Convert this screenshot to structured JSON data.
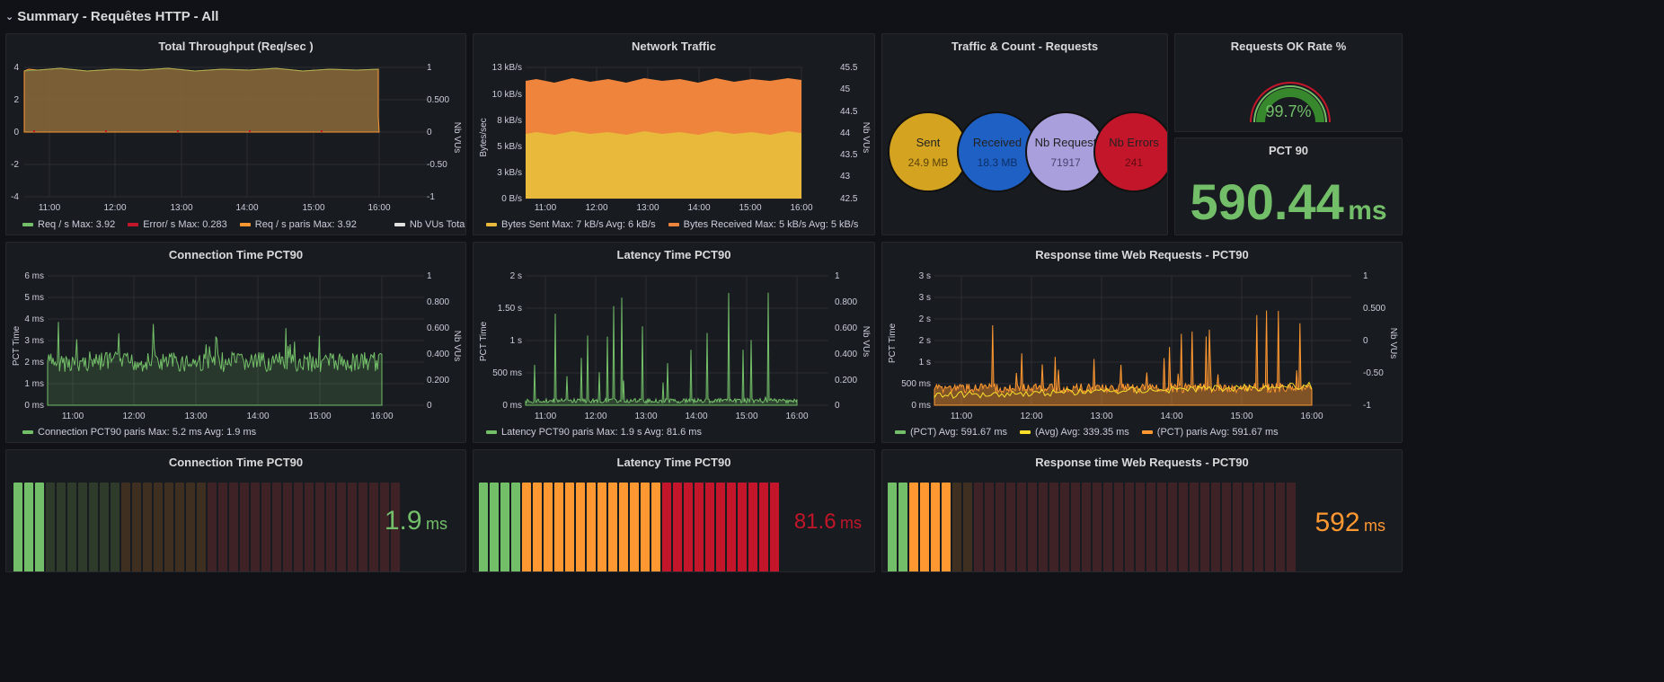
{
  "row": {
    "title": "Summary - Requêtes HTTP - All"
  },
  "colors": {
    "green": "#73bf69",
    "orange": "#ff9830",
    "red": "#c4162a",
    "yellow": "#fade2a",
    "sent": "#d4a420",
    "received": "#1f60c4",
    "nbreq": "#a89fdc",
    "errors": "#c4162a",
    "bytes_sent": "#e8b93a",
    "bytes_received": "#ef843c"
  },
  "throughput": {
    "title": "Total Throughput (Req/sec )",
    "y_left": [
      "4",
      "2",
      "0",
      "-2",
      "-4"
    ],
    "y_right": [
      "1",
      "0.500",
      "0",
      "-0.50",
      "-1"
    ],
    "y_right_label": "Nb VUs",
    "x": [
      "11:00",
      "12:00",
      "13:00",
      "14:00",
      "15:00",
      "16:00"
    ],
    "legend": [
      {
        "label": "Req / s  Max: 3.92",
        "color": "#73bf69"
      },
      {
        "label": "Error/ s  Max: 0.283",
        "color": "#c4162a"
      },
      {
        "label": "Req / s paris  Max: 3.92",
        "color": "#ff9830"
      },
      {
        "label": "Nb VUs Total  Max:",
        "color": "#e0e0e0"
      }
    ]
  },
  "network": {
    "title": "Network Traffic",
    "y_left": [
      "13 kB/s",
      "10 kB/s",
      "8 kB/s",
      "5 kB/s",
      "3 kB/s",
      "0 B/s"
    ],
    "y_left_label": "Bytes/sec",
    "y_right": [
      "45.5",
      "45",
      "44.5",
      "44",
      "43.5",
      "43",
      "42.5"
    ],
    "y_right_label": "Nb VUs",
    "x": [
      "11:00",
      "12:00",
      "13:00",
      "14:00",
      "15:00",
      "16:00"
    ],
    "legend": [
      {
        "label": "Bytes Sent  Max: 7 kB/s  Avg: 6 kB/s",
        "color": "#e8b93a"
      },
      {
        "label": "Bytes Received  Max: 5 kB/s  Avg: 5 kB/s",
        "color": "#ef843c"
      }
    ]
  },
  "traffic": {
    "title": "Traffic & Count - Requests",
    "bubbles": [
      {
        "label": "Sent",
        "value": "24.9 MB",
        "color": "#d4a420",
        "vcolor": "#5a4208"
      },
      {
        "label": "Received",
        "value": "18.3 MB",
        "color": "#1f60c4",
        "vcolor": "#0d2f66"
      },
      {
        "label": "Nb Request",
        "value": "71917",
        "color": "#a89fdc",
        "vcolor": "#4a4270"
      },
      {
        "label": "Nb Errors",
        "value": "241",
        "color": "#c4162a",
        "vcolor": "#5e0a12"
      }
    ]
  },
  "okrate": {
    "title": "Requests OK Rate %",
    "value": "99.7%",
    "fraction": 0.997
  },
  "pct90": {
    "title": "PCT 90",
    "value": "590.44",
    "unit": "ms"
  },
  "conn": {
    "title": "Connection Time PCT90",
    "y_left": [
      "6 ms",
      "5 ms",
      "4 ms",
      "3 ms",
      "2 ms",
      "1 ms",
      "0 ms"
    ],
    "y_left_label": "PCT Time",
    "y_right": [
      "1",
      "0.800",
      "0.600",
      "0.400",
      "0.200",
      "0"
    ],
    "y_right_label": "Nb VUs",
    "x": [
      "11:00",
      "12:00",
      "13:00",
      "14:00",
      "15:00",
      "16:00"
    ],
    "legend": [
      {
        "label": "Connection PCT90 paris  Max: 5.2 ms  Avg: 1.9 ms",
        "color": "#73bf69"
      }
    ]
  },
  "latency": {
    "title": "Latency Time PCT90",
    "y_left": [
      "2 s",
      "1.50 s",
      "1 s",
      "500 ms",
      "0 ms"
    ],
    "y_left_label": "PCT Time",
    "y_right": [
      "1",
      "0.800",
      "0.600",
      "0.400",
      "0.200",
      "0"
    ],
    "y_right_label": "Nb VUs",
    "x": [
      "11:00",
      "12:00",
      "13:00",
      "14:00",
      "15:00",
      "16:00"
    ],
    "legend": [
      {
        "label": "Latency PCT90 paris  Max: 1.9 s  Avg: 81.6 ms",
        "color": "#73bf69"
      }
    ]
  },
  "resp": {
    "title": "Response time Web Requests - PCT90",
    "y_left": [
      "3 s",
      "3 s",
      "2 s",
      "2 s",
      "1 s",
      "500 ms",
      "0 ms"
    ],
    "y_left_label": "PCT Time",
    "y_right": [
      "1",
      "0.500",
      "0",
      "-0.50",
      "-1"
    ],
    "y_right_label": "Nb VUs",
    "x": [
      "11:00",
      "12:00",
      "13:00",
      "14:00",
      "15:00",
      "16:00"
    ],
    "legend": [
      {
        "label": "(PCT)  Avg: 591.67 ms",
        "color": "#73bf69"
      },
      {
        "label": "(Avg)  Avg: 339.35 ms",
        "color": "#fade2a"
      },
      {
        "label": "(PCT) paris  Avg: 591.67 ms",
        "color": "#ff9830"
      }
    ]
  },
  "gauge_conn": {
    "title": "Connection Time PCT90",
    "value": "1.9",
    "unit": "ms",
    "color": "#73bf69"
  },
  "gauge_lat": {
    "title": "Latency Time PCT90",
    "value": "81.6",
    "unit": "ms",
    "color": "#c4162a"
  },
  "gauge_resp": {
    "title": "Response time Web Requests - PCT90",
    "value": "592",
    "unit": "ms",
    "color": "#ff9830"
  }
}
